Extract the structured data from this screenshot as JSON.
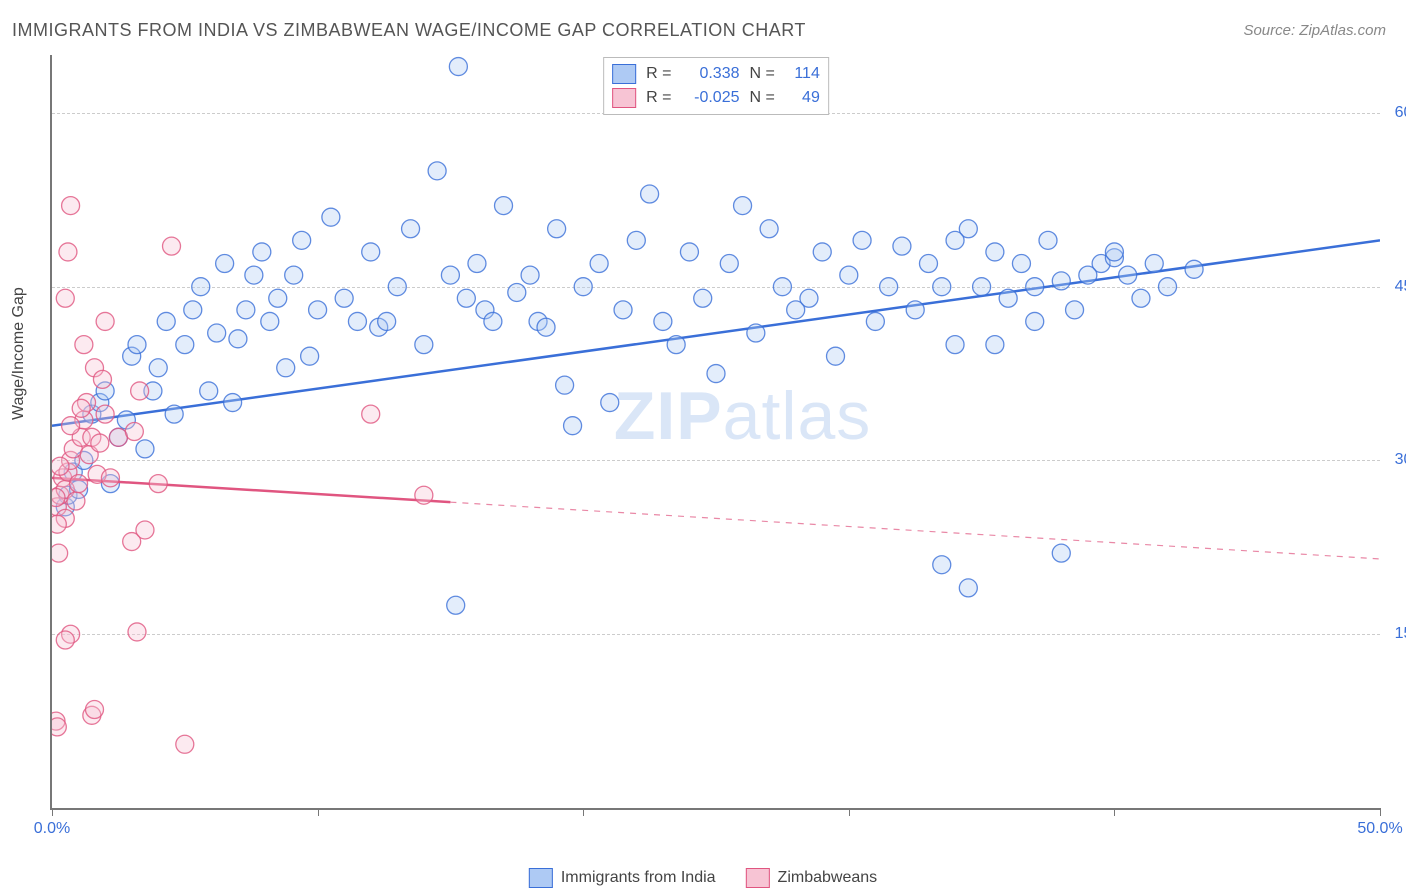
{
  "title": "IMMIGRANTS FROM INDIA VS ZIMBABWEAN WAGE/INCOME GAP CORRELATION CHART",
  "source": "Source: ZipAtlas.com",
  "ylabel": "Wage/Income Gap",
  "watermark_a": "ZIP",
  "watermark_b": "atlas",
  "chart": {
    "type": "scatter",
    "background_color": "#ffffff",
    "grid_color": "#cccccc",
    "axis_color": "#777777",
    "xlim": [
      0,
      50
    ],
    "ylim": [
      0,
      65
    ],
    "xticks": [
      0,
      10,
      20,
      30,
      40,
      50
    ],
    "xtick_labels": [
      "0.0%",
      "",
      "",
      "",
      "",
      "50.0%"
    ],
    "yticks": [
      15,
      30,
      45,
      60
    ],
    "ytick_labels": [
      "15.0%",
      "30.0%",
      "45.0%",
      "60.0%"
    ],
    "marker_radius": 9,
    "marker_opacity": 0.35,
    "marker_stroke_opacity": 0.8,
    "line_width": 2.5
  },
  "series": [
    {
      "name": "Immigrants from India",
      "color": "#3a6fd8",
      "fill": "#aecaf4",
      "R": "0.338",
      "N": "114",
      "trend": {
        "x1": 0,
        "y1": 33,
        "x2": 50,
        "y2": 49
      },
      "trend_solid_until": 50,
      "points": [
        [
          0.5,
          26
        ],
        [
          0.6,
          27
        ],
        [
          0.8,
          29
        ],
        [
          1,
          27.5
        ],
        [
          1.2,
          30
        ],
        [
          1.5,
          34
        ],
        [
          1.8,
          35
        ],
        [
          2,
          36
        ],
        [
          2.2,
          28
        ],
        [
          2.5,
          32
        ],
        [
          2.8,
          33.5
        ],
        [
          3,
          39
        ],
        [
          3.2,
          40
        ],
        [
          3.5,
          31
        ],
        [
          3.8,
          36
        ],
        [
          4,
          38
        ],
        [
          4.3,
          42
        ],
        [
          4.6,
          34
        ],
        [
          5,
          40
        ],
        [
          5.3,
          43
        ],
        [
          5.6,
          45
        ],
        [
          5.9,
          36
        ],
        [
          6.2,
          41
        ],
        [
          6.5,
          47
        ],
        [
          6.8,
          35
        ],
        [
          7,
          40.5
        ],
        [
          7.3,
          43
        ],
        [
          7.6,
          46
        ],
        [
          7.9,
          48
        ],
        [
          8.2,
          42
        ],
        [
          8.5,
          44
        ],
        [
          8.8,
          38
        ],
        [
          9.1,
          46
        ],
        [
          9.4,
          49
        ],
        [
          9.7,
          39
        ],
        [
          10,
          43
        ],
        [
          10.5,
          51
        ],
        [
          11,
          44
        ],
        [
          11.5,
          42
        ],
        [
          12,
          48
        ],
        [
          12.3,
          41.5
        ],
        [
          12.6,
          42
        ],
        [
          13,
          45
        ],
        [
          13.5,
          50
        ],
        [
          14,
          40
        ],
        [
          14.5,
          55
        ],
        [
          15,
          46
        ],
        [
          15.3,
          64
        ],
        [
          15.6,
          44
        ],
        [
          16,
          47
        ],
        [
          16.3,
          43
        ],
        [
          16.6,
          42
        ],
        [
          17,
          52
        ],
        [
          17.5,
          44.5
        ],
        [
          18,
          46
        ],
        [
          18.3,
          42
        ],
        [
          18.6,
          41.5
        ],
        [
          19,
          50
        ],
        [
          19.3,
          36.5
        ],
        [
          19.6,
          33
        ],
        [
          15.2,
          17.5
        ],
        [
          20,
          45
        ],
        [
          20.6,
          47
        ],
        [
          21,
          35
        ],
        [
          21.5,
          43
        ],
        [
          22,
          49
        ],
        [
          22.5,
          53
        ],
        [
          23,
          42
        ],
        [
          23.5,
          40
        ],
        [
          24,
          48
        ],
        [
          24.5,
          44
        ],
        [
          25,
          37.5
        ],
        [
          25.5,
          47
        ],
        [
          26,
          52
        ],
        [
          26.5,
          41
        ],
        [
          27,
          50
        ],
        [
          27.5,
          45
        ],
        [
          28,
          43
        ],
        [
          28.5,
          44
        ],
        [
          29,
          48
        ],
        [
          29.5,
          39
        ],
        [
          30,
          46
        ],
        [
          30.5,
          49
        ],
        [
          31,
          42
        ],
        [
          31.5,
          45
        ],
        [
          32,
          48.5
        ],
        [
          32.5,
          43
        ],
        [
          33,
          47
        ],
        [
          33.5,
          45
        ],
        [
          34,
          40
        ],
        [
          34.5,
          50
        ],
        [
          35,
          45
        ],
        [
          35.5,
          48
        ],
        [
          36,
          44
        ],
        [
          36.5,
          47
        ],
        [
          37,
          42
        ],
        [
          37.5,
          49
        ],
        [
          38,
          22
        ],
        [
          39.5,
          47
        ],
        [
          40,
          47.5
        ],
        [
          33.5,
          21
        ],
        [
          34.5,
          19
        ],
        [
          34,
          49
        ],
        [
          35.5,
          40
        ],
        [
          37,
          45
        ],
        [
          38,
          45.5
        ],
        [
          38.5,
          43
        ],
        [
          39,
          46
        ],
        [
          40,
          48
        ],
        [
          40.5,
          46
        ],
        [
          41,
          44
        ],
        [
          41.5,
          47
        ],
        [
          42,
          45
        ],
        [
          43,
          46.5
        ]
      ]
    },
    {
      "name": "Zimbabweans",
      "color": "#e05580",
      "fill": "#f7c4d4",
      "R": "-0.025",
      "N": "49",
      "trend": {
        "x1": 0,
        "y1": 28.5,
        "x2": 50,
        "y2": 21.5
      },
      "trend_solid_until": 15,
      "points": [
        [
          0.2,
          26
        ],
        [
          0.3,
          27
        ],
        [
          0.4,
          28.5
        ],
        [
          0.5,
          27.5
        ],
        [
          0.6,
          29
        ],
        [
          0.7,
          30
        ],
        [
          0.8,
          31
        ],
        [
          0.9,
          26.5
        ],
        [
          1.0,
          28
        ],
        [
          1.1,
          32
        ],
        [
          1.2,
          33.5
        ],
        [
          1.3,
          35
        ],
        [
          1.4,
          30.5
        ],
        [
          1.5,
          32
        ],
        [
          1.6,
          38
        ],
        [
          1.7,
          28.8
        ],
        [
          1.8,
          31.5
        ],
        [
          1.9,
          37
        ],
        [
          2.0,
          42
        ],
        [
          0.5,
          25
        ],
        [
          0.5,
          44
        ],
        [
          0.6,
          48
        ],
        [
          0.7,
          52
        ],
        [
          2.2,
          28.5
        ],
        [
          0.7,
          33
        ],
        [
          1.1,
          34.5
        ],
        [
          1.2,
          40
        ],
        [
          2.5,
          32
        ],
        [
          0.3,
          29.5
        ],
        [
          0.15,
          26.8
        ],
        [
          0.2,
          24.5
        ],
        [
          0.25,
          22
        ],
        [
          0.7,
          15
        ],
        [
          0.5,
          14.5
        ],
        [
          1.5,
          8
        ],
        [
          1.6,
          8.5
        ],
        [
          3.0,
          23
        ],
        [
          3.5,
          24
        ],
        [
          3.1,
          32.5
        ],
        [
          5.0,
          5.5
        ],
        [
          3.2,
          15.2
        ],
        [
          2.0,
          34
        ],
        [
          3.3,
          36
        ],
        [
          4.0,
          28
        ],
        [
          0.15,
          7.5
        ],
        [
          0.2,
          7
        ],
        [
          12.0,
          34
        ],
        [
          14.0,
          27
        ],
        [
          4.5,
          48.5
        ]
      ]
    }
  ],
  "legend_top": {
    "r_label": "R =",
    "n_label": "N ="
  },
  "legend_bottom": [
    {
      "label": "Immigrants from India",
      "series": 0
    },
    {
      "label": "Zimbabweans",
      "series": 1
    }
  ]
}
